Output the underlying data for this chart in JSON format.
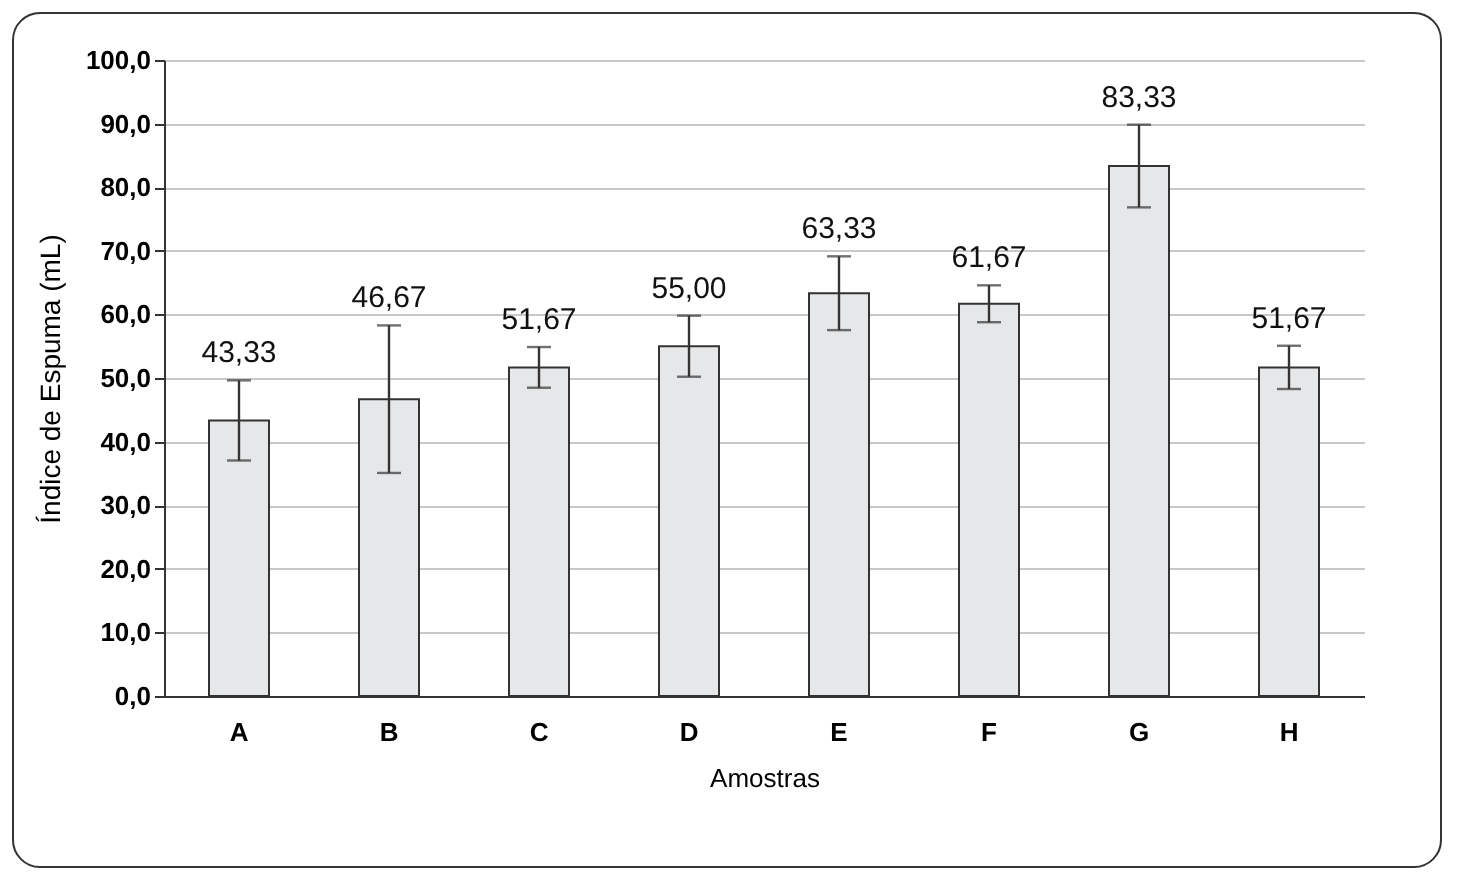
{
  "chart_data": {
    "type": "bar",
    "xlabel": "Amostras",
    "ylabel": "Índice de Espuma (mL)",
    "categories": [
      "A",
      "B",
      "C",
      "D",
      "E",
      "F",
      "G",
      "H"
    ],
    "values": [
      43.33,
      46.67,
      51.67,
      55.0,
      63.33,
      61.67,
      83.33,
      51.67
    ],
    "errors": [
      6.3,
      11.6,
      3.2,
      4.8,
      5.8,
      2.9,
      6.5,
      3.4
    ],
    "value_labels": [
      "43,33",
      "46,67",
      "51,67",
      "55,00",
      "63,33",
      "61,67",
      "83,33",
      "51,67"
    ],
    "color": "#e6e7e8",
    "ylim": [
      0,
      100
    ],
    "yticks": [
      {
        "value": 0,
        "label": "0,0"
      },
      {
        "value": 10,
        "label": "10,0"
      },
      {
        "value": 20,
        "label": "20,0"
      },
      {
        "value": 30,
        "label": "30,0"
      },
      {
        "value": 40,
        "label": "40,0"
      },
      {
        "value": 50,
        "label": "50,0"
      },
      {
        "value": 60,
        "label": "60,0"
      },
      {
        "value": 70,
        "label": "70,0"
      },
      {
        "value": 80,
        "label": "80,0"
      },
      {
        "value": 90,
        "label": "90,0"
      },
      {
        "value": 100,
        "label": "100,0"
      }
    ],
    "grid": "y"
  }
}
